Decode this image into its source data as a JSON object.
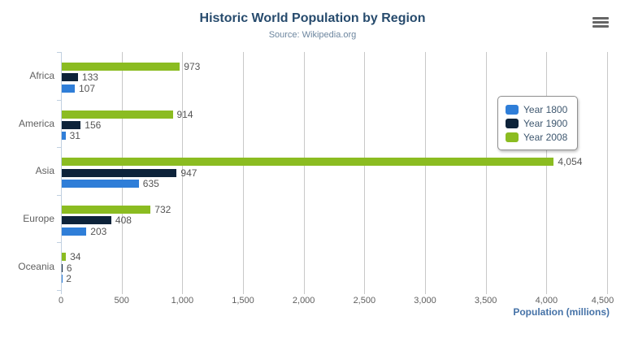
{
  "header": {
    "title": "Historic World Population by Region",
    "subtitle": "Source: Wikipedia.org",
    "menu_icon": "hamburger-export-menu"
  },
  "chart_data": {
    "type": "bar",
    "title": "Historic World Population by Region",
    "subtitle": "Source: Wikipedia.org",
    "categories": [
      "Africa",
      "America",
      "Asia",
      "Europe",
      "Oceania"
    ],
    "series": [
      {
        "name": "Year 1800",
        "color": "#2f7ed8",
        "values": [
          107,
          31,
          635,
          203,
          2
        ]
      },
      {
        "name": "Year 1900",
        "color": "#0d233a",
        "values": [
          133,
          156,
          947,
          408,
          6
        ]
      },
      {
        "name": "Year 2008",
        "color": "#8bbc21",
        "values": [
          973,
          914,
          4054,
          732,
          34
        ]
      }
    ],
    "bar_order_top_to_bottom": [
      "Year 2008",
      "Year 1900",
      "Year 1800"
    ],
    "data_labels": [
      "973",
      "133",
      "107",
      "914",
      "156",
      "31",
      "4,054",
      "947",
      "635",
      "732",
      "408",
      "203",
      "34",
      "6",
      "2"
    ],
    "xlabel": "Population (millions)",
    "ylabel": "",
    "xlim": [
      0,
      4500
    ],
    "x_ticks": [
      0,
      500,
      1000,
      1500,
      2000,
      2500,
      3000,
      3500,
      4000,
      4500
    ],
    "x_tick_labels": [
      "0",
      "500",
      "1,000",
      "1,500",
      "2,000",
      "2,500",
      "3,000",
      "3,500",
      "4,000",
      "4,500"
    ],
    "grid": true,
    "legend_position": "right-top"
  },
  "colors": {
    "title": "#274b6d",
    "subtitle": "#6d869f",
    "axis_title": "#4572a7",
    "axis_labels": "#606060",
    "data_labels": "#555555",
    "gridline": "#c8c8c8",
    "category_axis_line": "#c0d0e0",
    "legend_border": "#909090",
    "menu_icon": "#666666"
  }
}
